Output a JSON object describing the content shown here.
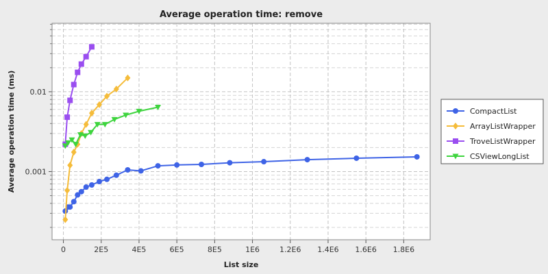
{
  "chart_data": {
    "type": "line",
    "title": "Average operation time: remove",
    "xlabel": "List size",
    "ylabel": "Average operation time (ms)",
    "xscale": "linear",
    "yscale": "log",
    "xlim": [
      -60000,
      1940000
    ],
    "ylim": [
      0.00014,
      0.072
    ],
    "x_tick_values": [
      0,
      200000,
      400000,
      600000,
      800000,
      1000000,
      1200000,
      1400000,
      1600000,
      1800000
    ],
    "x_tick_labels": [
      "0",
      "2E5",
      "4E5",
      "6E5",
      "8E5",
      "1E6",
      "1.2E6",
      "1.4E6",
      "1.6E6",
      "1.8E6"
    ],
    "y_tick_values": [
      0.001,
      0.01
    ],
    "y_tick_labels": [
      "0.001",
      "0.01"
    ],
    "grid": true,
    "legend_position": "right",
    "series": [
      {
        "name": "CompactList",
        "color": "#3e63e6",
        "marker": "circle",
        "x": [
          10000,
          25000,
          35000,
          55000,
          75000,
          95000,
          120000,
          150000,
          190000,
          230000,
          280000,
          340000,
          410000,
          500000,
          600000,
          730000,
          880000,
          1060000,
          1290000,
          1550000,
          1870000
        ],
        "y": [
          0.00032,
          0.00036,
          0.00036,
          0.00042,
          0.00051,
          0.00056,
          0.00064,
          0.00068,
          0.00075,
          0.0008,
          0.0009,
          0.00105,
          0.00102,
          0.00118,
          0.00121,
          0.00123,
          0.00129,
          0.00133,
          0.00141,
          0.00147,
          0.00153
        ]
      },
      {
        "name": "ArrayListWrapper",
        "color": "#f5bc3a",
        "marker": "diamond",
        "x": [
          10000,
          20000,
          35000,
          55000,
          75000,
          95000,
          120000,
          150000,
          190000,
          230000,
          280000,
          340000
        ],
        "y": [
          0.00025,
          0.00058,
          0.0012,
          0.00175,
          0.0022,
          0.003,
          0.0039,
          0.0054,
          0.0069,
          0.0088,
          0.0108,
          0.0149
        ]
      },
      {
        "name": "TroveListWrapper",
        "color": "#9a4ef0",
        "marker": "square",
        "x": [
          10000,
          20000,
          35000,
          55000,
          75000,
          95000,
          120000,
          150000
        ],
        "y": [
          0.0022,
          0.0048,
          0.0078,
          0.0123,
          0.0175,
          0.0222,
          0.0275,
          0.0365
        ]
      },
      {
        "name": "CSViewLongList",
        "color": "#3ed43e",
        "marker": "triangle-down",
        "x": [
          10000,
          25000,
          45000,
          65000,
          90000,
          115000,
          145000,
          180000,
          220000,
          270000,
          330000,
          400000,
          500000
        ],
        "y": [
          0.0021,
          0.0023,
          0.0025,
          0.0022,
          0.0029,
          0.0028,
          0.0031,
          0.0039,
          0.0039,
          0.0045,
          0.0051,
          0.0057,
          0.0064
        ]
      }
    ]
  }
}
